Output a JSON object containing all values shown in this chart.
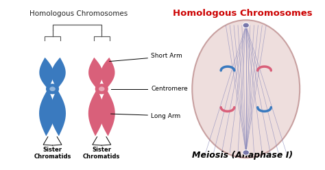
{
  "background_color": "#ffffff",
  "title_left": "Homologous Chromosomes",
  "title_right": "Homologous Chromosomes",
  "title_right_color": "#cc0000",
  "title_left_color": "#222222",
  "blue_color": "#3a7abf",
  "pink_color": "#d9607a",
  "label_short_arm": "Short Arm",
  "label_centromere": "Centromere",
  "label_long_arm": "Long Arm",
  "label_sister1": "Sister\nChromatids",
  "label_sister2": "Sister\nChromatids",
  "label_meiosis": "Meiosis (Anaphase I)",
  "cell_outline_color": "#c8a0a0",
  "spindle_color": "#8888bb",
  "cell_bg": "#eededd",
  "bracket_color": "#555555",
  "line_color": "#555555"
}
